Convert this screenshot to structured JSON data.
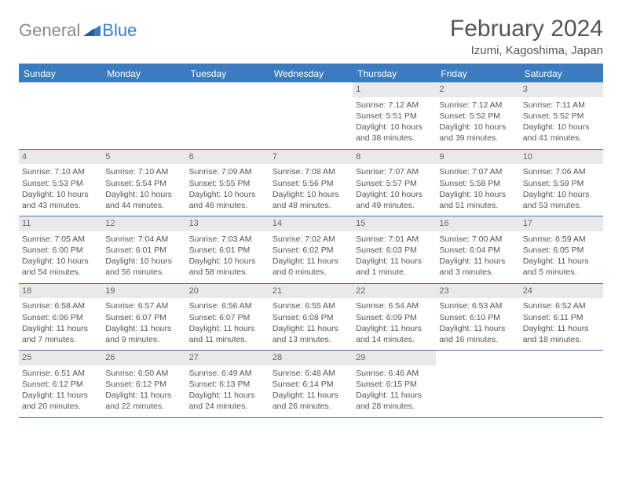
{
  "logo": {
    "general": "General",
    "blue": "Blue"
  },
  "title": "February 2024",
  "location": "Izumi, Kagoshima, Japan",
  "colors": {
    "accent": "#3b7bbf",
    "day_bar_bg": "#e9e9e9",
    "text": "#555555",
    "logo_gray": "#888888"
  },
  "day_names": [
    "Sunday",
    "Monday",
    "Tuesday",
    "Wednesday",
    "Thursday",
    "Friday",
    "Saturday"
  ],
  "weeks": [
    [
      {
        "n": "",
        "sr": "",
        "ss": "",
        "dl": ""
      },
      {
        "n": "",
        "sr": "",
        "ss": "",
        "dl": ""
      },
      {
        "n": "",
        "sr": "",
        "ss": "",
        "dl": ""
      },
      {
        "n": "",
        "sr": "",
        "ss": "",
        "dl": ""
      },
      {
        "n": "1",
        "sr": "Sunrise: 7:12 AM",
        "ss": "Sunset: 5:51 PM",
        "dl": "Daylight: 10 hours and 38 minutes."
      },
      {
        "n": "2",
        "sr": "Sunrise: 7:12 AM",
        "ss": "Sunset: 5:52 PM",
        "dl": "Daylight: 10 hours and 39 minutes."
      },
      {
        "n": "3",
        "sr": "Sunrise: 7:11 AM",
        "ss": "Sunset: 5:52 PM",
        "dl": "Daylight: 10 hours and 41 minutes."
      }
    ],
    [
      {
        "n": "4",
        "sr": "Sunrise: 7:10 AM",
        "ss": "Sunset: 5:53 PM",
        "dl": "Daylight: 10 hours and 43 minutes."
      },
      {
        "n": "5",
        "sr": "Sunrise: 7:10 AM",
        "ss": "Sunset: 5:54 PM",
        "dl": "Daylight: 10 hours and 44 minutes."
      },
      {
        "n": "6",
        "sr": "Sunrise: 7:09 AM",
        "ss": "Sunset: 5:55 PM",
        "dl": "Daylight: 10 hours and 46 minutes."
      },
      {
        "n": "7",
        "sr": "Sunrise: 7:08 AM",
        "ss": "Sunset: 5:56 PM",
        "dl": "Daylight: 10 hours and 48 minutes."
      },
      {
        "n": "8",
        "sr": "Sunrise: 7:07 AM",
        "ss": "Sunset: 5:57 PM",
        "dl": "Daylight: 10 hours and 49 minutes."
      },
      {
        "n": "9",
        "sr": "Sunrise: 7:07 AM",
        "ss": "Sunset: 5:58 PM",
        "dl": "Daylight: 10 hours and 51 minutes."
      },
      {
        "n": "10",
        "sr": "Sunrise: 7:06 AM",
        "ss": "Sunset: 5:59 PM",
        "dl": "Daylight: 10 hours and 53 minutes."
      }
    ],
    [
      {
        "n": "11",
        "sr": "Sunrise: 7:05 AM",
        "ss": "Sunset: 6:00 PM",
        "dl": "Daylight: 10 hours and 54 minutes."
      },
      {
        "n": "12",
        "sr": "Sunrise: 7:04 AM",
        "ss": "Sunset: 6:01 PM",
        "dl": "Daylight: 10 hours and 56 minutes."
      },
      {
        "n": "13",
        "sr": "Sunrise: 7:03 AM",
        "ss": "Sunset: 6:01 PM",
        "dl": "Daylight: 10 hours and 58 minutes."
      },
      {
        "n": "14",
        "sr": "Sunrise: 7:02 AM",
        "ss": "Sunset: 6:02 PM",
        "dl": "Daylight: 11 hours and 0 minutes."
      },
      {
        "n": "15",
        "sr": "Sunrise: 7:01 AM",
        "ss": "Sunset: 6:03 PM",
        "dl": "Daylight: 11 hours and 1 minute."
      },
      {
        "n": "16",
        "sr": "Sunrise: 7:00 AM",
        "ss": "Sunset: 6:04 PM",
        "dl": "Daylight: 11 hours and 3 minutes."
      },
      {
        "n": "17",
        "sr": "Sunrise: 6:59 AM",
        "ss": "Sunset: 6:05 PM",
        "dl": "Daylight: 11 hours and 5 minutes."
      }
    ],
    [
      {
        "n": "18",
        "sr": "Sunrise: 6:58 AM",
        "ss": "Sunset: 6:06 PM",
        "dl": "Daylight: 11 hours and 7 minutes."
      },
      {
        "n": "19",
        "sr": "Sunrise: 6:57 AM",
        "ss": "Sunset: 6:07 PM",
        "dl": "Daylight: 11 hours and 9 minutes."
      },
      {
        "n": "20",
        "sr": "Sunrise: 6:56 AM",
        "ss": "Sunset: 6:07 PM",
        "dl": "Daylight: 11 hours and 11 minutes."
      },
      {
        "n": "21",
        "sr": "Sunrise: 6:55 AM",
        "ss": "Sunset: 6:08 PM",
        "dl": "Daylight: 11 hours and 13 minutes."
      },
      {
        "n": "22",
        "sr": "Sunrise: 6:54 AM",
        "ss": "Sunset: 6:09 PM",
        "dl": "Daylight: 11 hours and 14 minutes."
      },
      {
        "n": "23",
        "sr": "Sunrise: 6:53 AM",
        "ss": "Sunset: 6:10 PM",
        "dl": "Daylight: 11 hours and 16 minutes."
      },
      {
        "n": "24",
        "sr": "Sunrise: 6:52 AM",
        "ss": "Sunset: 6:11 PM",
        "dl": "Daylight: 11 hours and 18 minutes."
      }
    ],
    [
      {
        "n": "25",
        "sr": "Sunrise: 6:51 AM",
        "ss": "Sunset: 6:12 PM",
        "dl": "Daylight: 11 hours and 20 minutes."
      },
      {
        "n": "26",
        "sr": "Sunrise: 6:50 AM",
        "ss": "Sunset: 6:12 PM",
        "dl": "Daylight: 11 hours and 22 minutes."
      },
      {
        "n": "27",
        "sr": "Sunrise: 6:49 AM",
        "ss": "Sunset: 6:13 PM",
        "dl": "Daylight: 11 hours and 24 minutes."
      },
      {
        "n": "28",
        "sr": "Sunrise: 6:48 AM",
        "ss": "Sunset: 6:14 PM",
        "dl": "Daylight: 11 hours and 26 minutes."
      },
      {
        "n": "29",
        "sr": "Sunrise: 6:46 AM",
        "ss": "Sunset: 6:15 PM",
        "dl": "Daylight: 11 hours and 28 minutes."
      },
      {
        "n": "",
        "sr": "",
        "ss": "",
        "dl": ""
      },
      {
        "n": "",
        "sr": "",
        "ss": "",
        "dl": ""
      }
    ]
  ]
}
